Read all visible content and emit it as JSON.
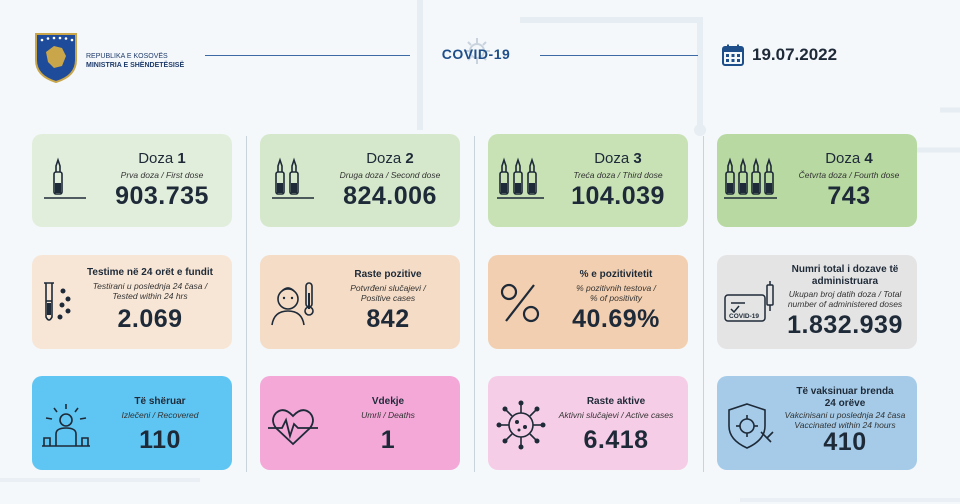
{
  "header": {
    "ministry_line1": "REPUBLIKA E KOSOVËS",
    "ministry_line2": "MINISTRIA E SHËNDETËSISË",
    "center_title": "COVID-19",
    "date": "19.07.2022",
    "icons": [
      "kosovo-coat-of-arms-logo",
      "calendar-icon",
      "virus-icon"
    ]
  },
  "doses": [
    {
      "title_word": "Doza",
      "title_num": "1",
      "subtitle": "Prva doza / First dose",
      "value": "903.735",
      "color": "#e2eedc",
      "icon": "vial-1-icon"
    },
    {
      "title_word": "Doza",
      "title_num": "2",
      "subtitle": "Druga doza / Second dose",
      "value": "824.006",
      "color": "#d6e8cb",
      "icon": "vial-2-icon"
    },
    {
      "title_word": "Doza",
      "title_num": "3",
      "subtitle": "Treća doza / Third dose",
      "value": "104.039",
      "color": "#c8e2b6",
      "icon": "vial-3-icon"
    },
    {
      "title_word": "Doza",
      "title_num": "4",
      "subtitle": "Četvrta doza / Fourth dose",
      "value": "743",
      "color": "#b8d9a2",
      "icon": "vial-4-icon"
    }
  ],
  "tests": {
    "head": "Testime në 24 orët e fundit",
    "sub1": "Testirani u poslednja 24 časa /",
    "sub2": "Tested within 24 hrs",
    "value": "2.069",
    "color": "#f7e6d6",
    "icon": "test-tube-icon"
  },
  "positive": {
    "head": "Raste pozitive",
    "sub1": "Potvrđeni slučajevi /",
    "sub2": "Positive cases",
    "value": "842",
    "color": "#f4dcc6",
    "icon": "fever-person-icon"
  },
  "positivity": {
    "head": "% e pozitivitetit",
    "sub1": "% pozitivnih testova /",
    "sub2": "% of positivity",
    "value": "40.69%",
    "color": "#f2cfb0",
    "icon": "percent-icon"
  },
  "total_doses": {
    "head1": "Numri total i dozave të",
    "head2": "administruara",
    "sub1": "Ukupan broj datih doza / Total",
    "sub2": "number of administered doses",
    "value": "1.832.939",
    "color": "#e4e4e4",
    "icon": "covid-certificate-icon",
    "icon_text": "COVID-19"
  },
  "recovered": {
    "head": "Të shëruar",
    "sub1": "Izlečeni / Recovered",
    "value": "110",
    "color": "#5fc5f2",
    "icon": "recovered-person-icon"
  },
  "deaths": {
    "head": "Vdekje",
    "sub1": "Umrli / Deaths",
    "value": "1",
    "color": "#f3a8d8",
    "icon": "heartbeat-icon"
  },
  "active": {
    "head": "Raste aktive",
    "sub1": "Aktivni slučajevi / Active cases",
    "value": "6.418",
    "color": "#f6cde6",
    "icon": "virus-cells-icon"
  },
  "vaccinated": {
    "head1": "Të vaksinuar brenda",
    "head2": "24 orëve",
    "sub1": "Vakcinisani u poslednja 24 časa",
    "sub2": "Vaccinated within 24 hours",
    "value": "410",
    "color": "#a5cbe8",
    "icon": "shield-virus-icon"
  }
}
